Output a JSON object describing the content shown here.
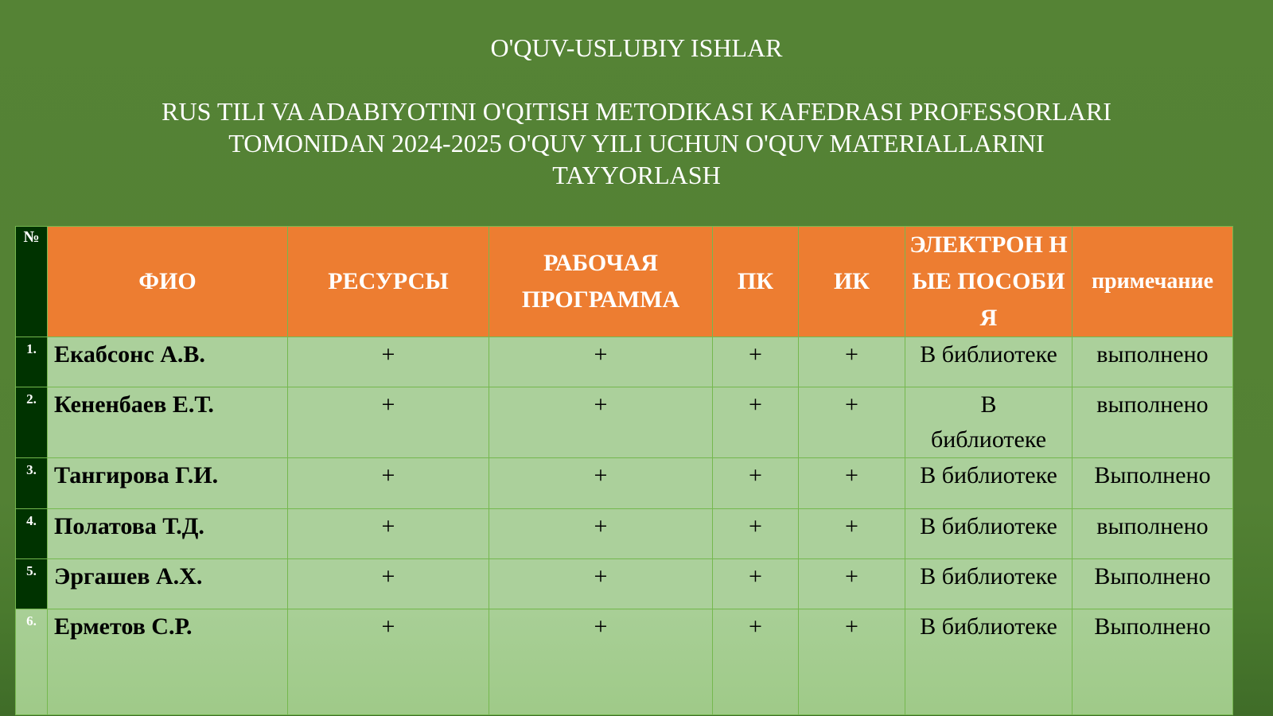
{
  "title": "O'QUV-USLUBIY ISHLAR",
  "subtitle": "RUS TILI VA ADABIYOTINI O'QITISH METODIKASI KAFEDRASI PROFESSORLARI TOMONIDAN 2024-2025 O'QUV YILI UCHUN O'QUV MATERIALLARINI TAYYORLASH",
  "colors": {
    "background": "#548235",
    "header": "#ED7D31",
    "row": "#ABD09B",
    "number_column": "#003300"
  },
  "table": {
    "headers": [
      "№",
      "ФИО",
      "РЕСУРСЫ",
      "РАБОЧАЯ ПРОГРАММА",
      "ПК",
      "ИК",
      "ЭЛЕКТРОН НЫЕ ПОСОБИЯ",
      "примечание"
    ],
    "rows": [
      [
        "1.",
        "Екабсонс А.В.",
        "+",
        "+",
        "+",
        "+",
        "В библиотеке",
        "выполнено"
      ],
      [
        "2.",
        "Кененбаев Е.Т.",
        "+",
        "+",
        "+",
        "+",
        "В библиотеке",
        "выполнено"
      ],
      [
        "3.",
        "Тангирова Г.И.",
        "+",
        "+",
        "+",
        "+",
        "В библиотеке",
        "Выполнено"
      ],
      [
        "4.",
        "Полатова Т.Д.",
        "+",
        "+",
        "+",
        "+",
        "В библиотеке",
        "выполнено"
      ],
      [
        "5.",
        "Эргашев А.Х.",
        "+",
        "+",
        "+",
        "+",
        "В библиотеке",
        "Выполнено"
      ],
      [
        "6.",
        "Ерметов С.Р.",
        "+",
        "+",
        "+",
        "+",
        "В библиотеке",
        "Выполнено"
      ]
    ]
  }
}
